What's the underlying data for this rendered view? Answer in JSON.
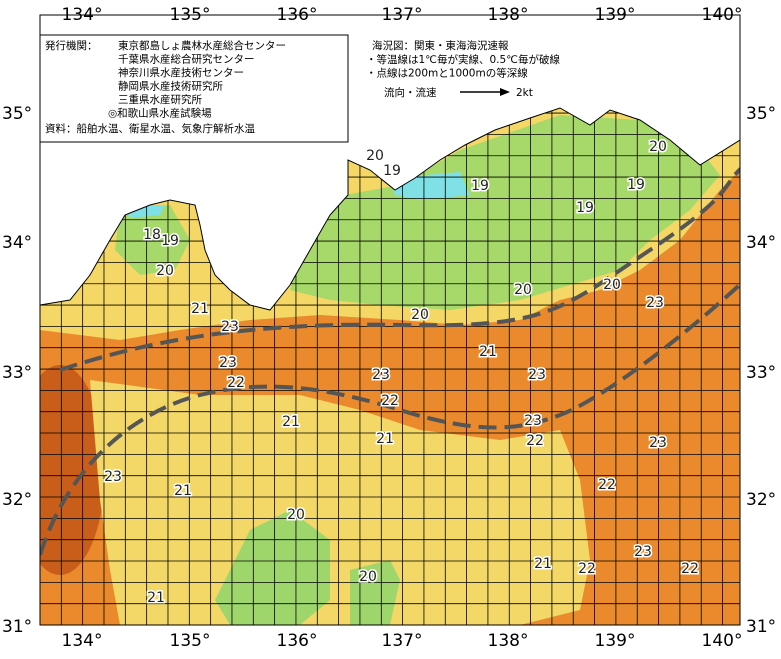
{
  "longitude_labels": [
    "134°",
    "135°",
    "136°",
    "137°",
    "138°",
    "139°",
    "140°"
  ],
  "latitude_labels": [
    "35°",
    "34°",
    "33°",
    "32°",
    "31°"
  ],
  "issuer": {
    "heading": "発行機関：",
    "agencies": [
      "東京都島しょ農林水産総合センター",
      "千葉県水産総合研究センター",
      "神奈川県水産技術センター",
      "静岡県水産技術研究所",
      "三重県水産研究所",
      "◎和歌山県水産試験場"
    ]
  },
  "sources": "資料：船舶水温、衛星水温、気象庁解析水温",
  "legend": {
    "title": "海況図：関東・東海海況速報",
    "notes": [
      "・等温線は1℃毎が実線、0.5℃毎が破線",
      "・点線は200mと1000mの等深線"
    ],
    "current_label": "流向・流速",
    "speed_label": "2kt"
  },
  "isotherm_labels": [
    "20",
    "19",
    "19",
    "19",
    "20",
    "19",
    "18",
    "19",
    "20",
    "21",
    "23",
    "20",
    "20",
    "20",
    "23",
    "21",
    "23",
    "22",
    "23",
    "23",
    "22",
    "21",
    "21",
    "23",
    "22",
    "23",
    "23",
    "21",
    "22",
    "20",
    "23",
    "21",
    "22",
    "22",
    "20",
    "21"
  ]
}
